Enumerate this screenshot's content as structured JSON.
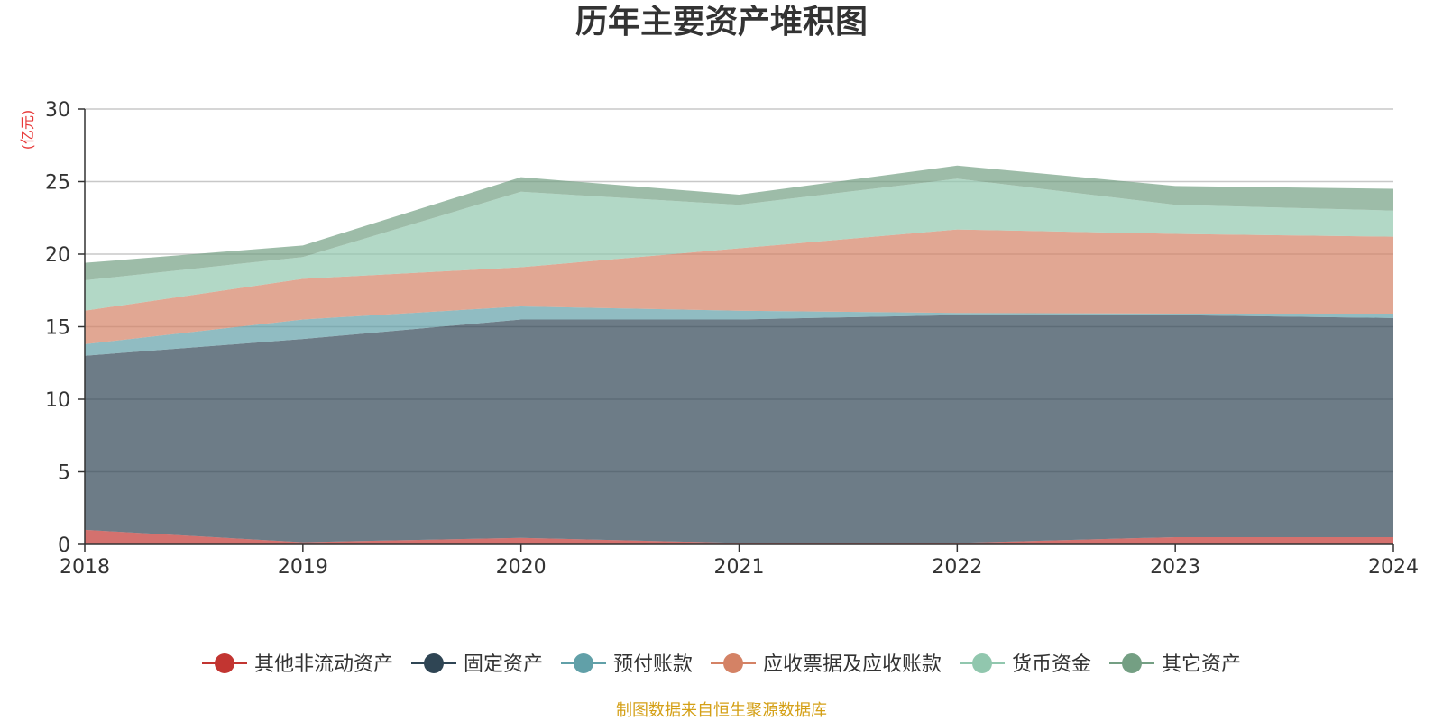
{
  "title": "历年主要资产堆积图",
  "source_note": "制图数据来自恒生聚源数据库",
  "colors": {
    "其他非流动资产": "#c23531",
    "固定资产": "#2f4554",
    "预付账款": "#61a0a8",
    "应收票据及应收账款": "#d48265",
    "货币资金": "#91c7ae",
    "其它资产": "#749f83"
  },
  "chart_data": {
    "type": "area",
    "stacked": true,
    "title": "历年主要资产堆积图",
    "xlabel": "",
    "ylabel": "(亿元)",
    "ylim": [
      0,
      30
    ],
    "yticks": [
      0,
      5,
      10,
      15,
      20,
      25,
      30
    ],
    "grid": true,
    "legend_position": "bottom",
    "x": [
      "2018",
      "2019",
      "2020",
      "2021",
      "2022",
      "2023",
      "2024"
    ],
    "series": [
      {
        "name": "其他非流动资产",
        "color": "#c23531",
        "values": [
          1.0,
          0.15,
          0.45,
          0.1,
          0.1,
          0.5,
          0.5
        ]
      },
      {
        "name": "固定资产",
        "color": "#2f4554",
        "values": [
          12.0,
          14.0,
          15.05,
          15.4,
          15.7,
          15.3,
          15.1
        ]
      },
      {
        "name": "预付账款",
        "color": "#61a0a8",
        "values": [
          0.8,
          1.35,
          0.9,
          0.6,
          0.15,
          0.1,
          0.3
        ]
      },
      {
        "name": "应收票据及应收账款",
        "color": "#d48265",
        "values": [
          2.3,
          2.8,
          2.7,
          4.3,
          5.75,
          5.5,
          5.3
        ]
      },
      {
        "name": "货币资金",
        "color": "#91c7ae",
        "values": [
          2.1,
          1.5,
          5.2,
          3.0,
          3.5,
          2.0,
          1.8
        ]
      },
      {
        "name": "其它资产",
        "color": "#749f83",
        "values": [
          1.2,
          0.8,
          1.0,
          0.7,
          0.9,
          1.3,
          1.5
        ]
      }
    ]
  }
}
